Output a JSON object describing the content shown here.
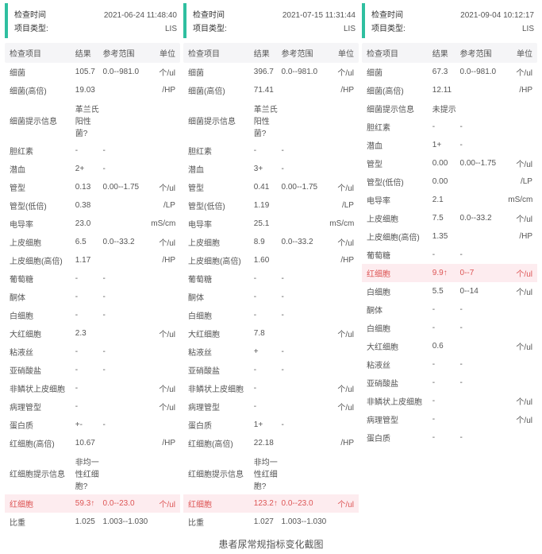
{
  "caption": "患者尿常规指标变化截图",
  "header_labels": {
    "time": "检查时间",
    "type": "项目类型:"
  },
  "columns": {
    "item": "检查项目",
    "result": "结果",
    "range": "参考范围",
    "unit": "单位"
  },
  "colors": {
    "accent": "#2fbfa0",
    "highlight_bg": "#fdecef",
    "highlight_text": "#d55",
    "header_row_bg": "#f5f5f7",
    "text": "#555"
  },
  "panels": [
    {
      "time": "2021-06-24 11:48:40",
      "type": "LIS",
      "rows": [
        {
          "item": "细菌",
          "result": "105.7",
          "range": "0.0--981.0",
          "unit": "个/ul",
          "hl": false
        },
        {
          "item": "细菌(高倍)",
          "result": "19.03",
          "range": "",
          "unit": "/HP",
          "hl": false
        },
        {
          "item": "细菌提示信息",
          "result": "革兰氏阳性菌?",
          "range": "",
          "unit": "",
          "hl": false
        },
        {
          "item": "胆红素",
          "result": "-",
          "range": "-",
          "unit": "",
          "hl": false
        },
        {
          "item": "潜血",
          "result": "2+",
          "range": "-",
          "unit": "",
          "hl": false
        },
        {
          "item": "管型",
          "result": "0.13",
          "range": "0.00--1.75",
          "unit": "个/ul",
          "hl": false
        },
        {
          "item": "管型(低倍)",
          "result": "0.38",
          "range": "",
          "unit": "/LP",
          "hl": false
        },
        {
          "item": "电导率",
          "result": "23.0",
          "range": "",
          "unit": "mS/cm",
          "hl": false
        },
        {
          "item": "上皮细胞",
          "result": "6.5",
          "range": "0.0--33.2",
          "unit": "个/ul",
          "hl": false
        },
        {
          "item": "上皮细胞(高倍)",
          "result": "1.17",
          "range": "",
          "unit": "/HP",
          "hl": false
        },
        {
          "item": "葡萄糖",
          "result": "-",
          "range": "-",
          "unit": "",
          "hl": false
        },
        {
          "item": "酮体",
          "result": "-",
          "range": "-",
          "unit": "",
          "hl": false
        },
        {
          "item": "白细胞",
          "result": "-",
          "range": "-",
          "unit": "",
          "hl": false
        },
        {
          "item": "大红细胞",
          "result": "2.3",
          "range": "",
          "unit": "个/ul",
          "hl": false
        },
        {
          "item": "粘液丝",
          "result": "-",
          "range": "-",
          "unit": "",
          "hl": false
        },
        {
          "item": "亚硝酸盐",
          "result": "-",
          "range": "-",
          "unit": "",
          "hl": false
        },
        {
          "item": "非鳞状上皮细胞",
          "result": "-",
          "range": "",
          "unit": "个/ul",
          "hl": false
        },
        {
          "item": "病理管型",
          "result": "-",
          "range": "",
          "unit": "个/ul",
          "hl": false
        },
        {
          "item": "蛋白质",
          "result": "+-",
          "range": "-",
          "unit": "",
          "hl": false
        },
        {
          "item": "红细胞(高倍)",
          "result": "10.67",
          "range": "",
          "unit": "/HP",
          "hl": false
        },
        {
          "item": "红细胞提示信息",
          "result": "非均一性红细胞?",
          "range": "",
          "unit": "",
          "hl": false
        },
        {
          "item": "红细胞",
          "result": "59.3↑",
          "range": "0.0--23.0",
          "unit": "个/ul",
          "hl": true
        },
        {
          "item": "比重",
          "result": "1.025",
          "range": "1.003--1.030",
          "unit": "",
          "hl": false
        }
      ]
    },
    {
      "time": "2021-07-15 11:31:44",
      "type": "LIS",
      "rows": [
        {
          "item": "细菌",
          "result": "396.7",
          "range": "0.0--981.0",
          "unit": "个/ul",
          "hl": false
        },
        {
          "item": "细菌(高倍)",
          "result": "71.41",
          "range": "",
          "unit": "/HP",
          "hl": false
        },
        {
          "item": "细菌提示信息",
          "result": "革兰氏阳性菌?",
          "range": "",
          "unit": "",
          "hl": false
        },
        {
          "item": "胆红素",
          "result": "-",
          "range": "-",
          "unit": "",
          "hl": false
        },
        {
          "item": "潜血",
          "result": "3+",
          "range": "-",
          "unit": "",
          "hl": false
        },
        {
          "item": "管型",
          "result": "0.41",
          "range": "0.00--1.75",
          "unit": "个/ul",
          "hl": false
        },
        {
          "item": "管型(低倍)",
          "result": "1.19",
          "range": "",
          "unit": "/LP",
          "hl": false
        },
        {
          "item": "电导率",
          "result": "25.1",
          "range": "",
          "unit": "mS/cm",
          "hl": false
        },
        {
          "item": "上皮细胞",
          "result": "8.9",
          "range": "0.0--33.2",
          "unit": "个/ul",
          "hl": false
        },
        {
          "item": "上皮细胞(高倍)",
          "result": "1.60",
          "range": "",
          "unit": "/HP",
          "hl": false
        },
        {
          "item": "葡萄糖",
          "result": "-",
          "range": "-",
          "unit": "",
          "hl": false
        },
        {
          "item": "酮体",
          "result": "-",
          "range": "-",
          "unit": "",
          "hl": false
        },
        {
          "item": "白细胞",
          "result": "-",
          "range": "-",
          "unit": "",
          "hl": false
        },
        {
          "item": "大红细胞",
          "result": "7.8",
          "range": "",
          "unit": "个/ul",
          "hl": false
        },
        {
          "item": "粘液丝",
          "result": "+",
          "range": "-",
          "unit": "",
          "hl": false
        },
        {
          "item": "亚硝酸盐",
          "result": "-",
          "range": "-",
          "unit": "",
          "hl": false
        },
        {
          "item": "非鳞状上皮细胞",
          "result": "-",
          "range": "",
          "unit": "个/ul",
          "hl": false
        },
        {
          "item": "病理管型",
          "result": "-",
          "range": "",
          "unit": "个/ul",
          "hl": false
        },
        {
          "item": "蛋白质",
          "result": "1+",
          "range": "-",
          "unit": "",
          "hl": false
        },
        {
          "item": "红细胞(高倍)",
          "result": "22.18",
          "range": "",
          "unit": "/HP",
          "hl": false
        },
        {
          "item": "红细胞提示信息",
          "result": "非均一性红细胞?",
          "range": "",
          "unit": "",
          "hl": false
        },
        {
          "item": "红细胞",
          "result": "123.2↑",
          "range": "0.0--23.0",
          "unit": "个/ul",
          "hl": true
        },
        {
          "item": "比重",
          "result": "1.027",
          "range": "1.003--1.030",
          "unit": "",
          "hl": false
        }
      ]
    },
    {
      "time": "2021-09-04 10:12:17",
      "type": "LIS",
      "rows": [
        {
          "item": "细菌",
          "result": "67.3",
          "range": "0.0--981.0",
          "unit": "个/ul",
          "hl": false
        },
        {
          "item": "细菌(高倍)",
          "result": "12.11",
          "range": "",
          "unit": "/HP",
          "hl": false
        },
        {
          "item": "细菌提示信息",
          "result": "未提示",
          "range": "",
          "unit": "",
          "hl": false
        },
        {
          "item": "胆红素",
          "result": "-",
          "range": "-",
          "unit": "",
          "hl": false
        },
        {
          "item": "潜血",
          "result": "1+",
          "range": "-",
          "unit": "",
          "hl": false
        },
        {
          "item": "管型",
          "result": "0.00",
          "range": "0.00--1.75",
          "unit": "个/ul",
          "hl": false
        },
        {
          "item": "管型(低倍)",
          "result": "0.00",
          "range": "",
          "unit": "/LP",
          "hl": false
        },
        {
          "item": "电导率",
          "result": "2.1",
          "range": "",
          "unit": "mS/cm",
          "hl": false
        },
        {
          "item": "上皮细胞",
          "result": "7.5",
          "range": "0.0--33.2",
          "unit": "个/ul",
          "hl": false
        },
        {
          "item": "上皮细胞(高倍)",
          "result": "1.35",
          "range": "",
          "unit": "/HP",
          "hl": false
        },
        {
          "item": "葡萄糖",
          "result": "-",
          "range": "-",
          "unit": "",
          "hl": false
        },
        {
          "item": "红细胞",
          "result": "9.9↑",
          "range": "0--7",
          "unit": "个/ul",
          "hl": true
        },
        {
          "item": "白细胞",
          "result": "5.5",
          "range": "0--14",
          "unit": "个/ul",
          "hl": false
        },
        {
          "item": "酮体",
          "result": "-",
          "range": "-",
          "unit": "",
          "hl": false
        },
        {
          "item": "白细胞",
          "result": "-",
          "range": "-",
          "unit": "",
          "hl": false
        },
        {
          "item": "大红细胞",
          "result": "0.6",
          "range": "",
          "unit": "个/ul",
          "hl": false
        },
        {
          "item": "粘液丝",
          "result": "-",
          "range": "-",
          "unit": "",
          "hl": false
        },
        {
          "item": "亚硝酸盐",
          "result": "-",
          "range": "-",
          "unit": "",
          "hl": false
        },
        {
          "item": "非鳞状上皮细胞",
          "result": "-",
          "range": "",
          "unit": "个/ul",
          "hl": false
        },
        {
          "item": "病理管型",
          "result": "-",
          "range": "",
          "unit": "个/ul",
          "hl": false
        },
        {
          "item": "蛋白质",
          "result": "-",
          "range": "-",
          "unit": "",
          "hl": false
        }
      ]
    }
  ]
}
